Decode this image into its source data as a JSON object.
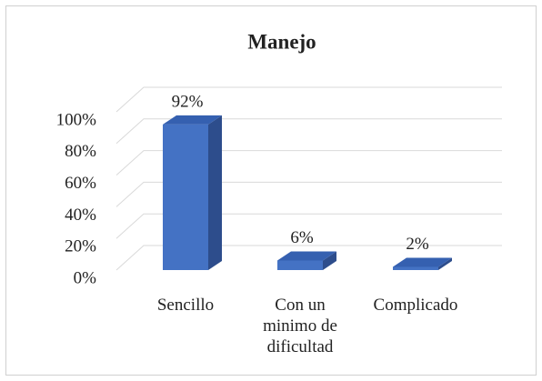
{
  "chart_data": {
    "type": "bar3d",
    "title": "Manejo",
    "categories": [
      "Sencillo",
      "Con un minimo de dificultad",
      "Complicado"
    ],
    "values": [
      92,
      6,
      2
    ],
    "value_labels": [
      "92%",
      "6%",
      "2%"
    ],
    "color": "#4472c4",
    "ylim": [
      0,
      100
    ],
    "yticks": [
      {
        "value": 0,
        "label": "0%"
      },
      {
        "value": 20,
        "label": "20%"
      },
      {
        "value": 40,
        "label": "40%"
      },
      {
        "value": 60,
        "label": "60%"
      },
      {
        "value": 80,
        "label": "80%"
      },
      {
        "value": 100,
        "label": "100%"
      }
    ],
    "grid": true
  }
}
